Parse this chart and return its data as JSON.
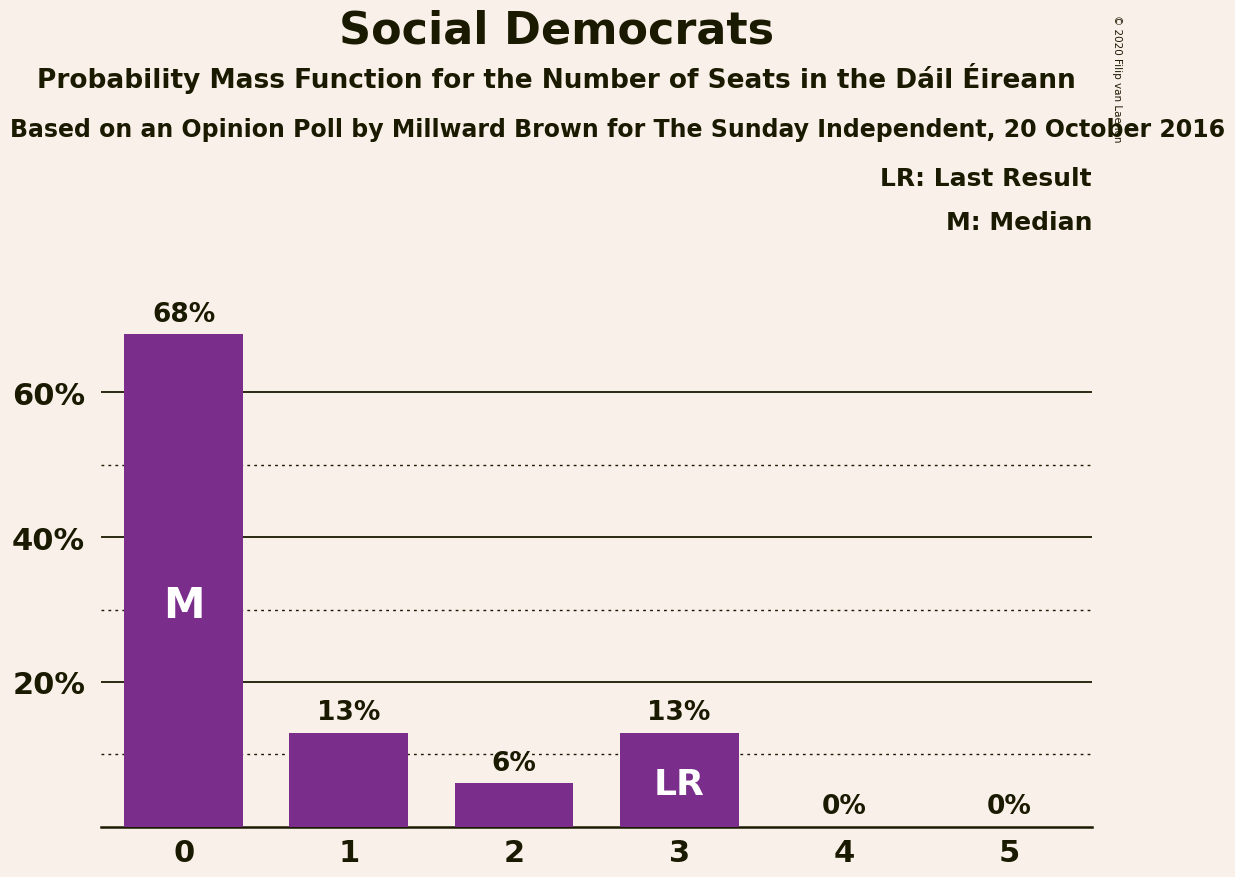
{
  "title": "Social Democrats",
  "subtitle": "Probability Mass Function for the Number of Seats in the Dáil Éireann",
  "source": "Based on an Opinion Poll by Millward Brown for The Sunday Independent, 20 October 2016",
  "copyright": "© 2020 Filip van Laenen",
  "categories": [
    0,
    1,
    2,
    3,
    4,
    5
  ],
  "values": [
    0.68,
    0.13,
    0.06,
    0.13,
    0.0,
    0.0
  ],
  "bar_color": "#7B2D8B",
  "background_color": "#FAF0EA",
  "text_color": "#1A1A00",
  "bar_labels": [
    "68%",
    "13%",
    "6%",
    "13%",
    "0%",
    "0%"
  ],
  "median_bar": 0,
  "lr_bar": 3,
  "median_label": "M",
  "lr_label": "LR",
  "legend_lr": "LR: Last Result",
  "legend_m": "M: Median",
  "yticks": [
    0.2,
    0.4,
    0.6
  ],
  "ytick_labels": [
    "20%",
    "40%",
    "60%"
  ],
  "solid_grid_lines": [
    0.2,
    0.4,
    0.6
  ],
  "dotted_grid_lines": [
    0.1,
    0.3,
    0.5
  ],
  "ylim": [
    0,
    0.74
  ],
  "title_fontsize": 32,
  "subtitle_fontsize": 19,
  "source_fontsize": 17,
  "bar_label_fontsize": 19,
  "tick_fontsize": 22,
  "legend_fontsize": 18
}
